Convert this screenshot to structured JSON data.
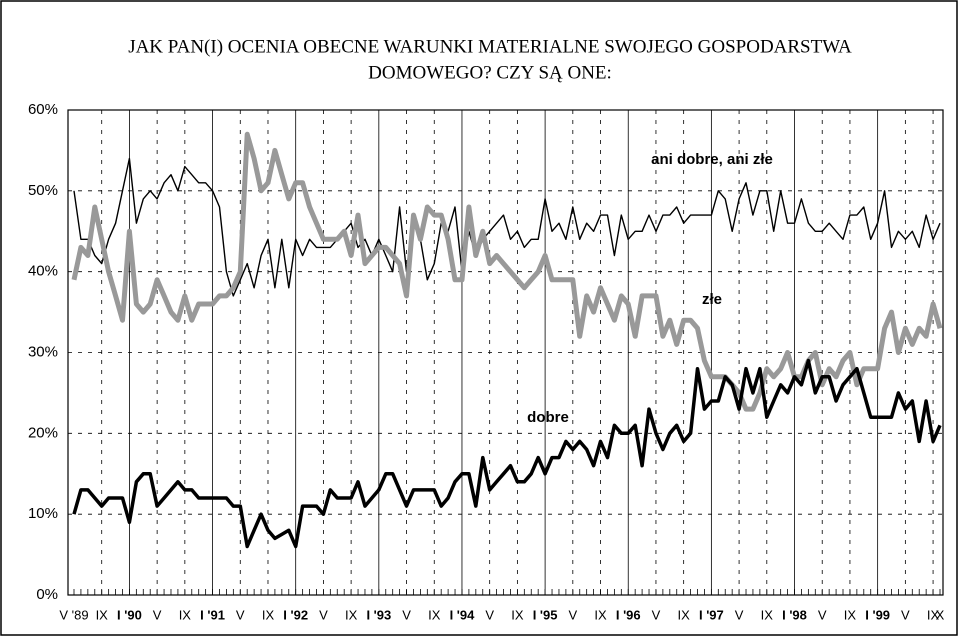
{
  "chart_data": {
    "type": "line",
    "title": [
      "JAK PAN(I) OCENIA OBECNE WARUNKI MATERIALNE SWOJEGO GOSPODARSTWA",
      "DOMOWEGO? CZY SĄ ONE:"
    ],
    "categories": [
      "V '89",
      null,
      null,
      null,
      "IX",
      null,
      null,
      null,
      "I '90",
      null,
      null,
      null,
      "V",
      null,
      null,
      null,
      "IX",
      null,
      null,
      null,
      "I '91",
      null,
      null,
      null,
      "V",
      null,
      null,
      null,
      "IX",
      null,
      null,
      null,
      "I '92",
      null,
      null,
      null,
      "V",
      null,
      null,
      null,
      "IX",
      null,
      null,
      null,
      "I '93",
      null,
      null,
      null,
      "V",
      null,
      null,
      null,
      "IX",
      null,
      null,
      null,
      "I '94",
      null,
      null,
      null,
      "V",
      null,
      null,
      null,
      "IX",
      null,
      null,
      null,
      "I '95",
      null,
      null,
      null,
      "V",
      null,
      null,
      null,
      "IX",
      null,
      null,
      null,
      "I '96",
      null,
      null,
      null,
      "V",
      null,
      null,
      null,
      "IX",
      null,
      null,
      null,
      "I '97",
      null,
      null,
      null,
      "V",
      null,
      null,
      null,
      "IX",
      null,
      null,
      null,
      "I '98",
      null,
      null,
      null,
      "V",
      null,
      null,
      null,
      "IX",
      null,
      null,
      null,
      "I '99",
      null,
      null,
      null,
      "V",
      null,
      null,
      null,
      "IX",
      "X"
    ],
    "series": [
      {
        "name": "ani dobre, ani złe",
        "color": "#000000",
        "values": [
          50,
          44,
          44,
          42,
          41,
          44,
          46,
          50,
          54,
          46,
          49,
          50,
          49,
          51,
          52,
          50,
          53,
          52,
          51,
          51,
          50,
          48,
          40,
          37,
          39,
          41,
          38,
          42,
          44,
          38,
          44,
          38,
          44,
          42,
          44,
          43,
          43,
          43,
          44,
          45,
          46,
          43,
          44,
          42,
          44,
          42,
          40,
          48,
          40,
          47,
          44,
          39,
          41,
          46,
          45,
          48,
          40,
          45,
          42,
          44,
          45,
          46,
          47,
          44,
          45,
          43,
          44,
          44,
          49,
          45,
          46,
          44,
          48,
          44,
          46,
          45,
          47,
          47,
          42,
          47,
          44,
          45,
          45,
          47,
          45,
          47,
          47,
          48,
          46,
          47,
          47,
          47,
          47,
          50,
          49,
          45,
          49,
          51,
          47,
          50,
          50,
          45,
          50,
          46,
          46,
          49,
          46,
          45,
          45,
          46,
          45,
          44,
          47,
          47,
          48,
          44,
          46,
          50,
          43,
          45,
          44,
          45,
          43,
          47,
          44,
          46
        ]
      },
      {
        "name": "złe",
        "color": "#999999",
        "values": [
          39,
          43,
          42,
          48,
          44,
          40,
          37,
          34,
          45,
          36,
          35,
          36,
          39,
          37,
          35,
          34,
          37,
          34,
          36,
          36,
          36,
          37,
          37,
          38,
          40,
          57,
          54,
          50,
          51,
          55,
          52,
          49,
          51,
          51,
          48,
          46,
          44,
          44,
          44,
          45,
          42,
          47,
          41,
          42,
          43,
          43,
          42,
          41,
          37,
          47,
          44,
          48,
          47,
          47,
          44,
          39,
          39,
          48,
          42,
          45,
          41,
          42,
          41,
          40,
          39,
          38,
          39,
          40,
          42,
          39,
          39,
          39,
          39,
          32,
          37,
          35,
          38,
          36,
          34,
          37,
          36,
          32,
          37,
          37,
          37,
          32,
          34,
          31,
          34,
          34,
          33,
          29,
          27,
          27,
          27,
          26,
          25,
          23,
          23,
          25,
          28,
          27,
          28,
          30,
          27,
          27,
          29,
          30,
          26,
          28,
          27,
          29,
          30,
          26,
          28,
          28,
          28,
          33,
          35,
          30,
          33,
          31,
          33,
          32,
          36,
          33
        ]
      },
      {
        "name": "dobre",
        "color": "#000000",
        "values": [
          10,
          13,
          13,
          12,
          11,
          12,
          12,
          12,
          9,
          14,
          15,
          15,
          11,
          12,
          13,
          14,
          13,
          13,
          12,
          12,
          12,
          12,
          12,
          11,
          11,
          6,
          8,
          10,
          8,
          7,
          7.5,
          8,
          6,
          11,
          11,
          11,
          10,
          13,
          12,
          12,
          12,
          14,
          11,
          12,
          13,
          15,
          15,
          13,
          11,
          13,
          13,
          13,
          13,
          11,
          12,
          14,
          15,
          15,
          11,
          17,
          13,
          14,
          15,
          16,
          14,
          14,
          15,
          17,
          15,
          17,
          17,
          19,
          18,
          19,
          18,
          16,
          19,
          17,
          21,
          20,
          20,
          21,
          16,
          23,
          20,
          18,
          20,
          21,
          19,
          20,
          28,
          23,
          24,
          24,
          27,
          26,
          23,
          28,
          25,
          28,
          22,
          24,
          26,
          25,
          27,
          26,
          29,
          25,
          27,
          27,
          24,
          26,
          27,
          28,
          25,
          22,
          22,
          22,
          22,
          25,
          23,
          24,
          19,
          24,
          19,
          21
        ]
      }
    ],
    "ylim": [
      0,
      60
    ],
    "yticks": [
      {
        "value": 0,
        "label": "0%"
      },
      {
        "value": 10,
        "label": "10%"
      },
      {
        "value": 20,
        "label": "20%"
      },
      {
        "value": 30,
        "label": "30%"
      },
      {
        "value": 40,
        "label": "40%"
      },
      {
        "value": 50,
        "label": "50%"
      },
      {
        "value": 60,
        "label": "60%"
      }
    ],
    "grid": true
  }
}
